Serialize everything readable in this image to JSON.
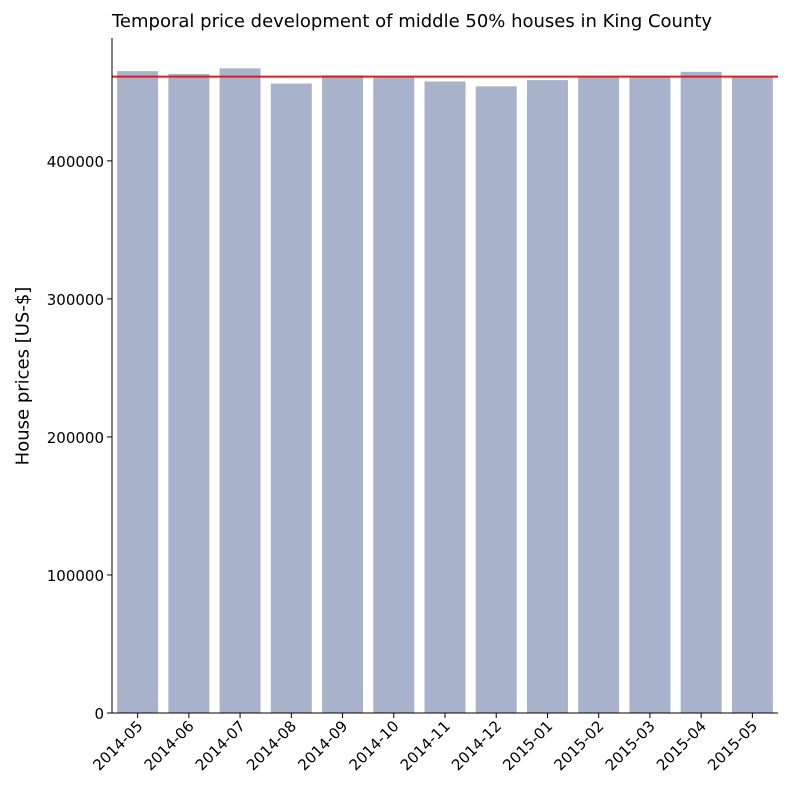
{
  "chart_data": {
    "type": "bar",
    "title": "Temporal price development of middle 50% houses in King County",
    "xlabel": "",
    "ylabel": "House prices [US-$]",
    "categories": [
      "2014-05",
      "2014-06",
      "2014-07",
      "2014-08",
      "2014-09",
      "2014-10",
      "2014-11",
      "2014-12",
      "2015-01",
      "2015-02",
      "2015-03",
      "2015-04",
      "2015-05"
    ],
    "values": [
      465000,
      463000,
      467000,
      456000,
      462000,
      461000,
      457500,
      454000,
      458500,
      460500,
      460500,
      464500,
      460500
    ],
    "ylim": [
      0,
      489000
    ],
    "yticks": [
      0,
      100000,
      200000,
      300000,
      400000
    ],
    "ytick_labels": [
      "0",
      "100000",
      "200000",
      "300000",
      "400000"
    ],
    "reference_line": {
      "value": 461000
    },
    "bar_color": "#a8b2ca",
    "reference_line_color": "#e41a1c",
    "grid": false,
    "legend": "none"
  }
}
